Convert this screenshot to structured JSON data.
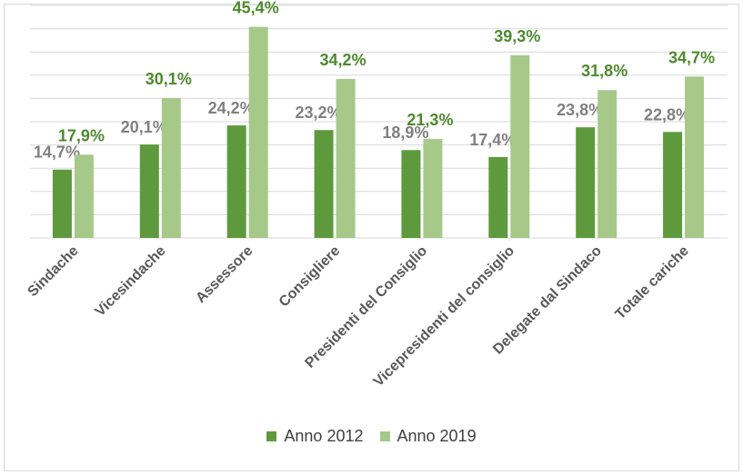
{
  "colors": {
    "series_2012": "#5e9a3d",
    "series_2019": "#a6c98a",
    "label_2012": "#808080",
    "label_2019": "#4e8a2e",
    "grid": "#d9d9d9",
    "axis_text": "#595959"
  },
  "chart_data": {
    "type": "bar",
    "title": "",
    "xlabel": "",
    "ylabel": "",
    "ylim": [
      0,
      50
    ],
    "grid": true,
    "legend_position": "bottom",
    "categories": [
      "Sindache",
      "Vicesindache",
      "Assessore",
      "Consigliere",
      "Presidenti del Consiglio",
      "Vicepresidenti del consiglio",
      "Delegate dal Sindaco",
      "Totale cariche"
    ],
    "series": [
      {
        "name": "Anno 2012",
        "values": [
          14.7,
          20.1,
          24.2,
          23.2,
          18.9,
          17.4,
          23.8,
          22.8
        ],
        "labels": [
          "14,7%",
          "20,1%",
          "24,2%",
          "23,2%",
          "18,9%",
          "17,4%",
          "23,8%",
          "22,8%"
        ]
      },
      {
        "name": "Anno 2019",
        "values": [
          17.9,
          30.1,
          45.4,
          34.2,
          21.3,
          39.3,
          31.8,
          34.7
        ],
        "labels": [
          "17,9%",
          "30,1%",
          "45,4%",
          "34,2%",
          "21,3%",
          "39,3%",
          "31,8%",
          "34,7%"
        ]
      }
    ]
  }
}
